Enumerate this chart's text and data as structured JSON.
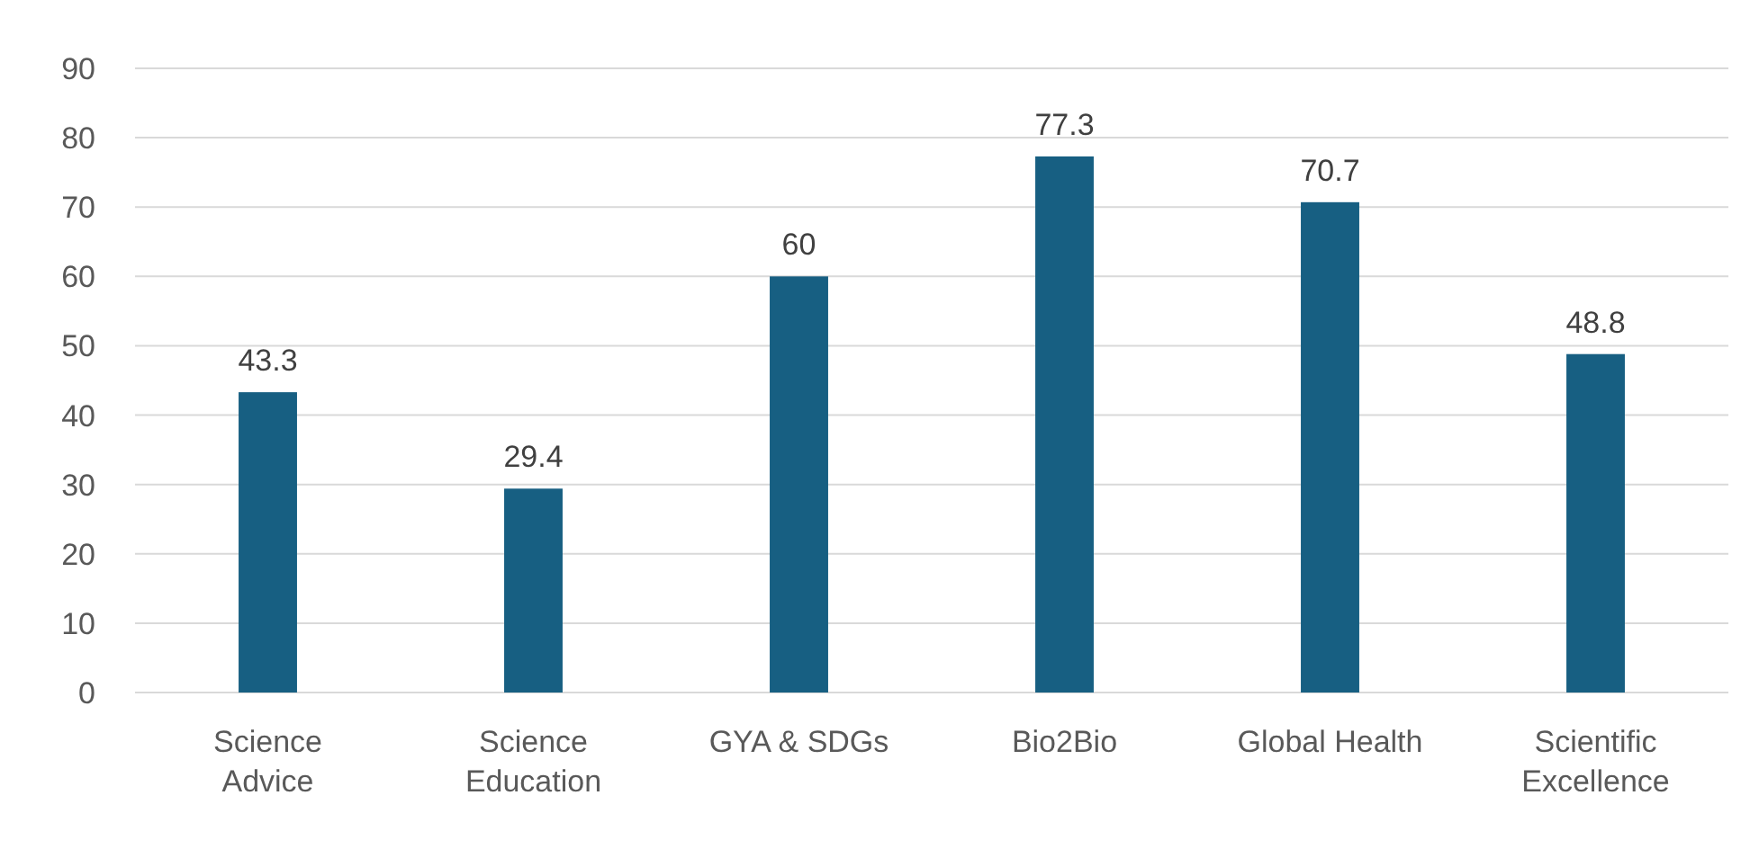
{
  "chart_data": {
    "type": "bar",
    "categories": [
      "Science Advice",
      "Science Education",
      "GYA & SDGs",
      "Bio2Bio",
      "Global Health",
      "Scientific Excellence"
    ],
    "values": [
      43.3,
      29.4,
      60,
      77.3,
      70.7,
      48.8
    ],
    "color": "#175f82",
    "ylim": [
      0,
      90
    ],
    "yticks": [
      0,
      10,
      20,
      30,
      40,
      50,
      60,
      70,
      80,
      90
    ],
    "grid": "y",
    "data_labels": true
  }
}
